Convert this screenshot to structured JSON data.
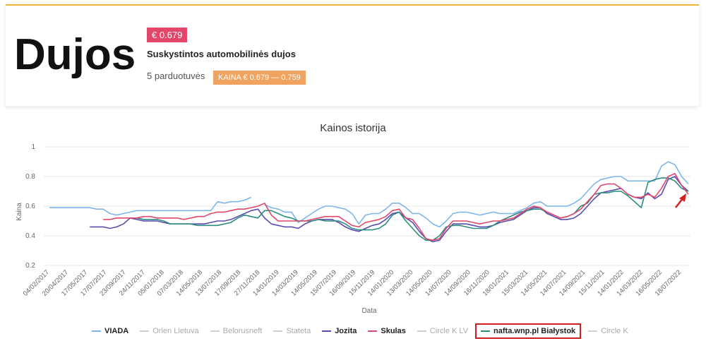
{
  "header": {
    "title": "Dujos",
    "price_badge": "€ 0.679",
    "subtitle": "Suskystintos automobilinės dujos",
    "stores": "5 parduotuvės",
    "range_badge": "KAINA € 0.679 — 0.759"
  },
  "colors": {
    "accent_bar": "#e8b631",
    "price_badge": "#e2476a",
    "range_badge": "#f0a35e",
    "highlight_box": "#cc1f1f",
    "arrow": "#d32020"
  },
  "chart_data": {
    "type": "line",
    "title": "Kainos istorija",
    "xlabel": "Data",
    "ylabel": "Kaina",
    "ylim": [
      0.2,
      1.0
    ],
    "yticks": [
      "0.2",
      "0.4",
      "0.6",
      "0.8",
      "1"
    ],
    "grid": true,
    "legend_position": "bottom",
    "xticks": [
      "04/02/2017",
      "20/04/2017",
      "17/05/2017",
      "17/07/2017",
      "23/09/2017",
      "24/11/2017",
      "05/01/2018",
      "07/03/2018",
      "14/05/2018",
      "13/07/2018",
      "17/09/2018",
      "27/11/2018",
      "14/01/2019",
      "14/03/2019",
      "14/05/2019",
      "15/07/2019",
      "16/09/2019",
      "15/11/2019",
      "14/01/2020",
      "13/03/2020",
      "14/05/2020",
      "14/07/2020",
      "14/09/2020",
      "16/11/2020",
      "18/01/2021",
      "15/03/2021",
      "14/05/2021",
      "14/07/2021",
      "14/09/2021",
      "15/11/2021",
      "14/01/2022",
      "14/03/2022",
      "16/05/2022",
      "18/07/2022"
    ],
    "series": [
      {
        "name": "VIADA",
        "color": "#7cb5ec",
        "visible": true,
        "y": [
          0.59,
          0.59,
          0.59,
          0.59,
          0.59,
          0.59,
          0.59,
          0.58,
          0.58,
          0.55,
          0.54,
          0.55,
          0.56,
          0.57,
          0.57,
          0.57,
          0.57,
          0.57,
          0.57,
          0.57,
          0.57,
          0.57,
          0.57,
          0.57,
          0.57,
          0.63,
          0.62,
          0.63,
          0.63,
          0.64,
          0.66,
          null,
          0.61,
          0.59,
          0.58,
          0.56,
          0.56,
          0.49,
          0.52,
          0.55,
          0.58,
          0.6,
          0.6,
          0.59,
          0.58,
          0.55,
          0.48,
          0.54,
          0.55,
          0.55,
          0.58,
          0.62,
          0.62,
          0.59,
          0.55,
          0.55,
          0.52,
          0.48,
          0.46,
          0.5,
          0.55,
          0.56,
          0.56,
          0.55,
          0.54,
          0.55,
          0.56,
          0.55,
          0.55,
          0.55,
          0.57,
          0.59,
          0.62,
          0.63,
          0.6,
          0.6,
          0.6,
          0.6,
          0.62,
          0.65,
          0.7,
          0.75,
          0.78,
          0.79,
          0.8,
          0.8,
          0.77,
          0.77,
          0.77,
          0.77,
          0.77,
          0.87,
          0.9,
          0.88,
          0.8,
          0.75
        ]
      },
      {
        "name": "Orlen Lietuva",
        "color": "#c8c8c8",
        "visible": false
      },
      {
        "name": "Belorusneft",
        "color": "#c8c8c8",
        "visible": false
      },
      {
        "name": "Stateta",
        "color": "#c8c8c8",
        "visible": false
      },
      {
        "name": "Jozita",
        "color": "#5a4bb0",
        "visible": true,
        "y": [
          null,
          null,
          null,
          null,
          null,
          null,
          0.46,
          0.46,
          0.46,
          0.45,
          0.46,
          0.48,
          0.52,
          0.51,
          0.5,
          0.5,
          0.5,
          0.49,
          0.48,
          0.48,
          0.48,
          0.48,
          0.48,
          0.48,
          0.49,
          0.5,
          0.5,
          0.51,
          0.53,
          0.55,
          0.57,
          0.58,
          0.52,
          0.48,
          0.47,
          0.46,
          0.46,
          0.45,
          0.48,
          0.5,
          0.51,
          0.51,
          0.51,
          0.49,
          0.46,
          0.44,
          0.43,
          0.45,
          0.47,
          0.48,
          0.51,
          0.55,
          0.56,
          0.52,
          0.49,
          0.43,
          0.38,
          0.36,
          0.37,
          0.43,
          0.48,
          0.48,
          0.48,
          0.47,
          0.46,
          0.46,
          0.47,
          0.49,
          0.5,
          0.51,
          0.54,
          0.57,
          0.59,
          0.59,
          0.55,
          0.53,
          0.51,
          0.51,
          0.52,
          0.55,
          0.6,
          0.65,
          0.69,
          0.7,
          0.71,
          0.72,
          0.68,
          0.66,
          0.65,
          0.69,
          0.65,
          0.68,
          0.78,
          0.8,
          0.74,
          0.7
        ]
      },
      {
        "name": "Skulas",
        "color": "#e2476a",
        "visible": true,
        "y": [
          null,
          null,
          null,
          null,
          null,
          null,
          null,
          null,
          0.51,
          0.51,
          0.52,
          0.52,
          0.52,
          0.52,
          0.53,
          0.53,
          0.52,
          0.52,
          0.52,
          0.52,
          0.51,
          0.52,
          0.53,
          0.53,
          0.55,
          0.56,
          0.56,
          0.57,
          0.58,
          0.58,
          0.59,
          0.6,
          0.62,
          0.54,
          0.5,
          0.5,
          0.5,
          0.5,
          0.5,
          0.51,
          0.52,
          0.53,
          0.53,
          0.53,
          0.5,
          0.47,
          0.46,
          0.49,
          0.5,
          0.51,
          0.53,
          0.57,
          0.58,
          0.52,
          0.51,
          0.45,
          0.38,
          0.37,
          0.38,
          0.45,
          0.5,
          0.5,
          0.5,
          0.49,
          0.48,
          0.49,
          0.5,
          0.5,
          0.51,
          0.52,
          0.55,
          0.58,
          0.6,
          0.59,
          0.56,
          0.54,
          0.52,
          0.53,
          0.55,
          0.58,
          0.63,
          0.68,
          0.74,
          0.75,
          0.75,
          0.72,
          0.68,
          0.66,
          0.66,
          0.68,
          0.66,
          0.72,
          0.8,
          0.82,
          0.74,
          0.68
        ]
      },
      {
        "name": "Circle K LV",
        "color": "#c8c8c8",
        "visible": false
      },
      {
        "name": "nafta.wnp.pl Białystok",
        "color": "#2a8c7e",
        "visible": true,
        "y": [
          null,
          null,
          null,
          null,
          null,
          null,
          null,
          null,
          null,
          null,
          null,
          null,
          0.52,
          0.52,
          0.51,
          0.51,
          0.51,
          0.5,
          0.48,
          0.48,
          0.48,
          0.48,
          0.47,
          0.47,
          0.47,
          0.47,
          0.48,
          0.49,
          0.52,
          0.54,
          0.53,
          0.52,
          0.57,
          0.57,
          0.55,
          0.53,
          0.52,
          0.5,
          0.5,
          0.5,
          0.51,
          0.5,
          0.5,
          0.5,
          0.48,
          0.45,
          0.44,
          0.44,
          0.44,
          0.45,
          0.48,
          0.54,
          0.56,
          0.5,
          0.45,
          0.4,
          0.37,
          0.37,
          0.4,
          0.46,
          0.47,
          0.47,
          0.46,
          0.45,
          0.45,
          0.45,
          0.47,
          0.5,
          0.52,
          0.54,
          0.56,
          0.57,
          0.58,
          0.58,
          0.56,
          0.54,
          0.52,
          0.53,
          0.55,
          0.6,
          0.62,
          0.68,
          0.69,
          0.69,
          0.7,
          0.7,
          0.67,
          0.63,
          0.59,
          0.76,
          0.78,
          0.79,
          0.79,
          0.77,
          0.72,
          0.7
        ]
      },
      {
        "name": "Circle K",
        "color": "#c8c8c8",
        "visible": false
      }
    ]
  }
}
